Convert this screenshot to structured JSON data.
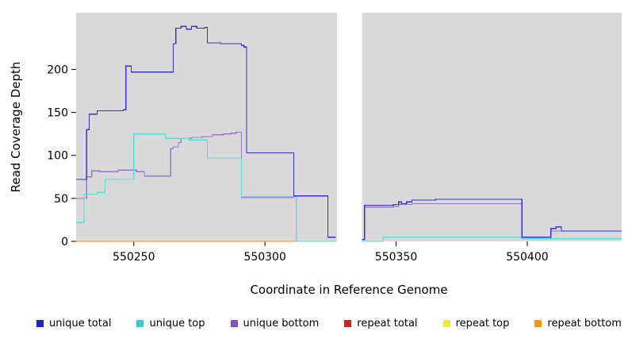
{
  "chart_data": {
    "type": "line",
    "line_style": "step",
    "title": "",
    "xlabel": "Coordinate in Reference Genome",
    "ylabel": "Read Coverage Depth",
    "xlim": [
      550228,
      550436
    ],
    "ylim": [
      0,
      266
    ],
    "x_ticks": [
      550250,
      550300,
      550350,
      550400
    ],
    "y_ticks": [
      0,
      50,
      100,
      150,
      200
    ],
    "grid": false,
    "plot_bg": "#d9d9d9",
    "gap": {
      "x1": 550327.5,
      "x2": 550337,
      "color": "#ffffff"
    },
    "series": [
      {
        "name": "unique total",
        "color": "#3333cc",
        "segments": [
          [
            [
              550228,
              72
            ],
            [
              550231,
              72
            ],
            [
              550232,
              130
            ],
            [
              550233,
              148
            ],
            [
              550236,
              152
            ],
            [
              550246,
              153
            ],
            [
              550247,
              204
            ],
            [
              550249,
              197
            ],
            [
              550264,
              197
            ],
            [
              550265,
              230
            ],
            [
              550266,
              248
            ],
            [
              550268,
              250
            ],
            [
              550270,
              247
            ],
            [
              550272,
              250
            ],
            [
              550274,
              248
            ],
            [
              550277,
              249
            ],
            [
              550278,
              231
            ],
            [
              550283,
              230
            ],
            [
              550291,
              228
            ],
            [
              550292,
              226
            ],
            [
              550293,
              103
            ],
            [
              550310,
              103
            ],
            [
              550311,
              53
            ],
            [
              550323,
              53
            ],
            [
              550324,
              5
            ],
            [
              550327,
              5
            ]
          ],
          [
            [
              550337,
              2
            ],
            [
              550338,
              42
            ],
            [
              550348,
              42
            ],
            [
              550349,
              43
            ],
            [
              550351,
              46
            ],
            [
              550352,
              44
            ],
            [
              550354,
              46
            ],
            [
              550356,
              48
            ],
            [
              550365,
              49
            ],
            [
              550397,
              49
            ],
            [
              550398,
              5
            ],
            [
              550408,
              5
            ],
            [
              550409,
              15
            ],
            [
              550411,
              17
            ],
            [
              550413,
              12
            ],
            [
              550436,
              12
            ]
          ]
        ]
      },
      {
        "name": "unique top",
        "color": "#55dcdc",
        "segments": [
          [
            [
              550228,
              22
            ],
            [
              550230,
              22
            ],
            [
              550231,
              55
            ],
            [
              550236,
              57
            ],
            [
              550239,
              72
            ],
            [
              550249,
              72
            ],
            [
              550250,
              125
            ],
            [
              550261,
              125
            ],
            [
              550262,
              120
            ],
            [
              550270,
              120
            ],
            [
              550271,
              118
            ],
            [
              550277,
              118
            ],
            [
              550278,
              97
            ],
            [
              550290,
              97
            ],
            [
              550291,
              52
            ],
            [
              550311,
              52
            ],
            [
              550312,
              0
            ],
            [
              550327,
              0
            ]
          ],
          [
            [
              550337,
              0
            ],
            [
              550344,
              0
            ],
            [
              550345,
              5
            ],
            [
              550397,
              5
            ],
            [
              550398,
              3
            ],
            [
              550436,
              3
            ]
          ]
        ]
      },
      {
        "name": "unique bottom",
        "color": "#9b72cf",
        "segments": [
          [
            [
              550228,
              50
            ],
            [
              550231,
              50
            ],
            [
              550232,
              75
            ],
            [
              550234,
              82
            ],
            [
              550237,
              81
            ],
            [
              550244,
              83
            ],
            [
              550249,
              83
            ],
            [
              550251,
              81
            ],
            [
              550254,
              76
            ],
            [
              550263,
              76
            ],
            [
              550264,
              108
            ],
            [
              550265,
              110
            ],
            [
              550267,
              115
            ],
            [
              550268,
              120
            ],
            [
              550272,
              121
            ],
            [
              550276,
              122
            ],
            [
              550280,
              124
            ],
            [
              550284,
              125
            ],
            [
              550287,
              126
            ],
            [
              550289,
              127
            ],
            [
              550291,
              51
            ],
            [
              550310,
              51
            ],
            [
              550311,
              53
            ],
            [
              550323,
              53
            ],
            [
              550324,
              5
            ],
            [
              550327,
              5
            ]
          ],
          [
            [
              550337,
              2
            ],
            [
              550338,
              40
            ],
            [
              550349,
              41
            ],
            [
              550351,
              43
            ],
            [
              550356,
              44
            ],
            [
              550397,
              44
            ],
            [
              550398,
              3
            ],
            [
              550408,
              3
            ],
            [
              550409,
              12
            ],
            [
              550436,
              12
            ]
          ]
        ]
      },
      {
        "name": "repeat total",
        "color": "#cc2222",
        "segments": []
      },
      {
        "name": "repeat top",
        "color": "#f0f000",
        "segments": []
      },
      {
        "name": "repeat bottom",
        "color": "#ff9900",
        "segments": [
          [
            [
              550228,
              0
            ],
            [
              550313,
              0
            ]
          ]
        ]
      }
    ]
  },
  "legend": {
    "items": [
      {
        "label": "unique total",
        "color": "#2222cc"
      },
      {
        "label": "unique top",
        "color": "#33cccc"
      },
      {
        "label": "unique bottom",
        "color": "#8a4fc8"
      },
      {
        "label": "repeat total",
        "color": "#cc2222"
      },
      {
        "label": "repeat top",
        "color": "#eeee22"
      },
      {
        "label": "repeat bottom",
        "color": "#ff9900"
      }
    ]
  }
}
